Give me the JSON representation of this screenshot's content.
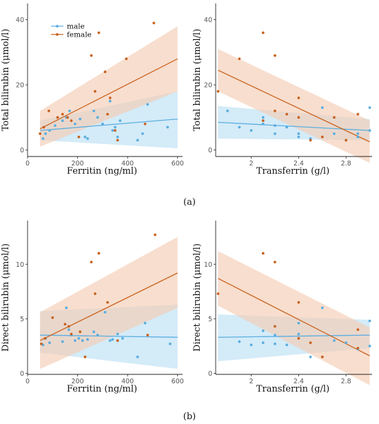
{
  "colors": {
    "male": "#5aaee0",
    "female": "#c8621e",
    "male_band": "#bde0f4",
    "female_band": "#f4cdb3"
  },
  "panel_labels": [
    "(a)",
    "(b)"
  ],
  "chart_data": [
    {
      "type": "scatter",
      "xlabel": "Ferritin (ng/ml)",
      "ylabel": "Total bilirubin (μmol/l)",
      "xlim": [
        0,
        620
      ],
      "ylim": [
        -2,
        45
      ],
      "xticks": [
        0,
        200,
        400,
        600
      ],
      "yticks": [
        0,
        20,
        40
      ],
      "legend": {
        "position": "top-left",
        "entries": [
          "male",
          "female"
        ]
      },
      "series": [
        {
          "name": "male",
          "points": [
            [
              62,
              3.5
            ],
            [
              72,
              5
            ],
            [
              88,
              6
            ],
            [
              110,
              7.5
            ],
            [
              140,
              9
            ],
            [
              155,
              10
            ],
            [
              168,
              12
            ],
            [
              190,
              8
            ],
            [
              210,
              9.5
            ],
            [
              230,
              4
            ],
            [
              240,
              3.5
            ],
            [
              265,
              12
            ],
            [
              280,
              10
            ],
            [
              300,
              8
            ],
            [
              330,
              15
            ],
            [
              340,
              6
            ],
            [
              350,
              7
            ],
            [
              360,
              4
            ],
            [
              370,
              9
            ],
            [
              440,
              3
            ],
            [
              460,
              5
            ],
            [
              480,
              14
            ],
            [
              560,
              7
            ]
          ],
          "fit": {
            "x": [
              50,
              600
            ],
            "y": [
              6,
              9.5
            ]
          },
          "band": {
            "lower": [
              3,
              0.5
            ],
            "upper": [
              9,
              18
            ]
          }
        },
        {
          "name": "female",
          "points": [
            [
              50,
              5
            ],
            [
              65,
              7
            ],
            [
              85,
              12
            ],
            [
              120,
              10
            ],
            [
              140,
              11
            ],
            [
              160,
              10
            ],
            [
              175,
              9
            ],
            [
              205,
              4
            ],
            [
              255,
              29
            ],
            [
              270,
              18
            ],
            [
              285,
              36
            ],
            [
              310,
              24
            ],
            [
              320,
              11
            ],
            [
              330,
              16
            ],
            [
              350,
              6
            ],
            [
              360,
              3
            ],
            [
              395,
              28
            ],
            [
              470,
              8
            ],
            [
              505,
              39
            ]
          ],
          "fit": {
            "x": [
              50,
              600
            ],
            "y": [
              6.5,
              28
            ]
          },
          "band": {
            "lower": [
              1,
              18
            ],
            "upper": [
              12,
              38
            ]
          }
        }
      ]
    },
    {
      "type": "scatter",
      "xlabel": "Transferrin (g/l)",
      "ylabel": "Total bilirubin (μmol/l)",
      "xlim": [
        1.7,
        3.02
      ],
      "ylim": [
        -2,
        45
      ],
      "xticks": [
        2.0,
        2.4,
        2.8
      ],
      "yticks": [
        0,
        20,
        40
      ],
      "series": [
        {
          "name": "male",
          "points": [
            [
              1.8,
              12
            ],
            [
              1.9,
              7
            ],
            [
              2.0,
              6
            ],
            [
              2.1,
              10
            ],
            [
              2.1,
              8
            ],
            [
              2.2,
              7.5
            ],
            [
              2.2,
              5
            ],
            [
              2.3,
              7
            ],
            [
              2.4,
              5
            ],
            [
              2.4,
              4
            ],
            [
              2.5,
              3.5
            ],
            [
              2.6,
              13
            ],
            [
              2.7,
              5
            ],
            [
              2.8,
              3
            ],
            [
              2.9,
              4
            ],
            [
              2.9,
              5
            ],
            [
              3.0,
              6
            ],
            [
              3.0,
              13
            ]
          ],
          "fit": {
            "x": [
              1.72,
              3.0
            ],
            "y": [
              8.5,
              6.0
            ]
          },
          "band": {
            "lower": [
              3.5,
              3.0
            ],
            "upper": [
              13.5,
              9.5
            ]
          }
        },
        {
          "name": "female",
          "points": [
            [
              1.72,
              18
            ],
            [
              1.9,
              28
            ],
            [
              2.1,
              36
            ],
            [
              2.1,
              9
            ],
            [
              2.2,
              29
            ],
            [
              2.2,
              12
            ],
            [
              2.3,
              11
            ],
            [
              2.4,
              16
            ],
            [
              2.4,
              10
            ],
            [
              2.5,
              3
            ],
            [
              2.6,
              4
            ],
            [
              2.7,
              10
            ],
            [
              2.8,
              3
            ],
            [
              2.9,
              11
            ]
          ],
          "fit": {
            "x": [
              1.72,
              3.0
            ],
            "y": [
              24.5,
              2.5
            ]
          },
          "band": {
            "lower": [
              18,
              -4
            ],
            "upper": [
              31,
              9
            ]
          }
        }
      ]
    },
    {
      "type": "scatter",
      "xlabel": "Ferritin (ng/ml)",
      "ylabel": "Direct bilirubin (μmol/l)",
      "xlim": [
        0,
        620
      ],
      "ylim": [
        -0.1,
        14
      ],
      "xticks": [
        0,
        200,
        400,
        600
      ],
      "yticks": [
        0,
        5,
        10
      ],
      "series": [
        {
          "name": "male",
          "points": [
            [
              62,
              2.6
            ],
            [
              72,
              3.2
            ],
            [
              88,
              2.8
            ],
            [
              140,
              2.9
            ],
            [
              155,
              6.0
            ],
            [
              165,
              4.0
            ],
            [
              175,
              3.5
            ],
            [
              190,
              3.0
            ],
            [
              205,
              3.2
            ],
            [
              220,
              3.0
            ],
            [
              240,
              3.1
            ],
            [
              265,
              3.8
            ],
            [
              280,
              3.5
            ],
            [
              310,
              5.6
            ],
            [
              330,
              3.0
            ],
            [
              340,
              3.1
            ],
            [
              360,
              3.6
            ],
            [
              380,
              3.2
            ],
            [
              440,
              1.5
            ],
            [
              470,
              4.6
            ],
            [
              570,
              2.7
            ]
          ],
          "fit": {
            "x": [
              50,
              600
            ],
            "y": [
              3.5,
              3.3
            ]
          },
          "band": {
            "lower": [
              1.9,
              0.4
            ],
            "upper": [
              5.7,
              6.3
            ]
          }
        },
        {
          "name": "female",
          "points": [
            [
              55,
              2.7
            ],
            [
              70,
              3.2
            ],
            [
              100,
              5.1
            ],
            [
              150,
              4.5
            ],
            [
              165,
              4.3
            ],
            [
              175,
              3.6
            ],
            [
              210,
              3.8
            ],
            [
              230,
              1.5
            ],
            [
              255,
              10.2
            ],
            [
              270,
              7.3
            ],
            [
              285,
              11.0
            ],
            [
              320,
              6.5
            ],
            [
              360,
              3.0
            ],
            [
              480,
              3.5
            ],
            [
              510,
              12.7
            ]
          ],
          "fit": {
            "x": [
              50,
              600
            ],
            "y": [
              3.0,
              9.2
            ]
          },
          "band": {
            "lower": [
              0.4,
              6.0
            ],
            "upper": [
              5.6,
              12.5
            ]
          }
        }
      ]
    },
    {
      "type": "scatter",
      "xlabel": "Transferrin (g/l)",
      "ylabel": "Direct bilirubin (μmol/l)",
      "xlim": [
        1.7,
        3.02
      ],
      "ylim": [
        -0.1,
        14
      ],
      "xticks": [
        2.0,
        2.4,
        2.8
      ],
      "yticks": [
        0,
        5,
        10
      ],
      "series": [
        {
          "name": "male",
          "points": [
            [
              1.9,
              2.9
            ],
            [
              2.0,
              2.6
            ],
            [
              2.1,
              3.9
            ],
            [
              2.1,
              2.8
            ],
            [
              2.2,
              3.5
            ],
            [
              2.2,
              2.7
            ],
            [
              2.3,
              2.6
            ],
            [
              2.4,
              4.6
            ],
            [
              2.4,
              3.6
            ],
            [
              2.5,
              1.5
            ],
            [
              2.6,
              6.0
            ],
            [
              2.7,
              3.0
            ],
            [
              2.8,
              2.8
            ],
            [
              2.9,
              2.2
            ],
            [
              3.0,
              4.8
            ],
            [
              3.0,
              2.5
            ]
          ],
          "fit": {
            "x": [
              1.72,
              3.0
            ],
            "y": [
              3.3,
              3.5
            ]
          },
          "band": {
            "lower": [
              1.1,
              2.3
            ],
            "upper": [
              5.4,
              4.9
            ]
          }
        },
        {
          "name": "female",
          "points": [
            [
              1.72,
              7.3
            ],
            [
              2.1,
              11.0
            ],
            [
              2.2,
              10.2
            ],
            [
              2.2,
              4.3
            ],
            [
              2.4,
              6.5
            ],
            [
              2.4,
              3.2
            ],
            [
              2.5,
              2.8
            ],
            [
              2.6,
              1.5
            ],
            [
              2.9,
              2.3
            ],
            [
              2.9,
              4.0
            ]
          ],
          "fit": {
            "x": [
              1.72,
              3.0
            ],
            "y": [
              8.7,
              1.6
            ]
          },
          "band": {
            "lower": [
              6.2,
              -1.1
            ],
            "upper": [
              11.2,
              4.2
            ]
          }
        }
      ]
    }
  ]
}
